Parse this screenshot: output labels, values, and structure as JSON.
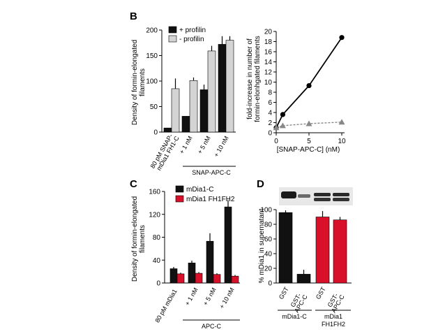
{
  "chart_data": [
    {
      "panel": "B",
      "type": "bar",
      "ylabel": "Density of formin-elongated filaments",
      "ylim": [
        0,
        200
      ],
      "yticks": [
        0,
        50,
        100,
        150,
        200
      ],
      "categories": [
        "80 pM SNAP-mDia1 FH1-C",
        "+ 1 nM",
        "+ 5 nM",
        "+ 10 nM"
      ],
      "group_label": "SNAP-APC-C",
      "series": [
        {
          "name": "+ profilin",
          "color": "#111111",
          "values": [
            8,
            31,
            83,
            172
          ],
          "errors": [
            0,
            0,
            10,
            16
          ]
        },
        {
          "name": "- profilin",
          "color": "#d4d4d4",
          "values": [
            85,
            101,
            159,
            180
          ],
          "errors": [
            20,
            6,
            10,
            8
          ]
        }
      ],
      "legend": "top-left"
    },
    {
      "panel": "B-right",
      "type": "line",
      "ylabel": "fold-increase in number of formin-elongated filaments",
      "xlabel": "[SNAP-APC-C] (nM)",
      "xlim": [
        0,
        10
      ],
      "ylim": [
        0,
        20
      ],
      "xticks": [
        0,
        5,
        10
      ],
      "yticks": [
        0,
        2,
        4,
        6,
        8,
        10,
        12,
        14,
        16,
        18,
        20
      ],
      "series": [
        {
          "marker": "circle",
          "color": "#000000",
          "style": "solid",
          "x": [
            0,
            1,
            5,
            10
          ],
          "y": [
            1,
            3.6,
            9.3,
            18.8
          ]
        },
        {
          "marker": "triangle",
          "color": "#888888",
          "style": "dashed",
          "x": [
            0,
            1,
            5,
            10
          ],
          "y": [
            1,
            1.4,
            1.8,
            2.1
          ]
        }
      ]
    },
    {
      "panel": "C",
      "type": "bar",
      "ylabel": "Density of formin-elongated filaments",
      "ylim": [
        0,
        160
      ],
      "yticks": [
        0,
        40,
        80,
        120,
        160
      ],
      "categories": [
        "80 pM mDia1",
        "+ 1 nM",
        "+ 5 nM",
        "+ 10 nM"
      ],
      "group_label": "APC-C",
      "series": [
        {
          "name": "mDia1-C",
          "color": "#111111",
          "values": [
            25,
            35,
            73,
            133
          ],
          "errors": [
            3,
            4,
            14,
            12
          ]
        },
        {
          "name": "mDia1 FH1FH2",
          "color": "#d8102a",
          "values": [
            16,
            17,
            15,
            12
          ],
          "errors": [
            2,
            2,
            2,
            2
          ]
        }
      ],
      "legend": "top-left"
    },
    {
      "panel": "D",
      "type": "bar",
      "ylabel": "% mDia1 in supernatant",
      "ylim": [
        0,
        100
      ],
      "yticks": [
        0,
        20,
        40,
        60,
        80,
        100
      ],
      "categories": [
        "GST",
        "GST-APC-C",
        "GST",
        "GST-APC-C"
      ],
      "groups": [
        "mDia1-C",
        "mDia1 FH1FH2"
      ],
      "series": [
        {
          "values": [
            96,
            12,
            90,
            86
          ],
          "errors": [
            3,
            6,
            8,
            4
          ],
          "colors": [
            "#111111",
            "#111111",
            "#d8102a",
            "#d8102a"
          ]
        }
      ]
    }
  ],
  "panels": {
    "b_label": "B",
    "c_label": "C",
    "d_label": "D"
  },
  "labels": {
    "b_group": "SNAP-APC-C",
    "c_group": "APC-C",
    "d_group1": "mDia1-C",
    "d_group2_line1": "mDia1",
    "d_group2_line2": "FH1FH2",
    "b_cat0_line1": "80 pM SNAP-",
    "b_cat0_line2": "mDia1 FH1-C",
    "c_cat0": "80 pM mDia1",
    "d_cat1_line1": "GST-",
    "d_cat1_line2": "APC-C",
    "b_ylabel_line1": "Density of formin-elongated",
    "b_ylabel_line2": "filaments",
    "br_ylabel_line1": "fold-increase in number of",
    "br_ylabel_line2": "formin-elonhgated filaments",
    "c_ylabel_line1": "Density of formin-elongated",
    "c_ylabel_line2": "filaments"
  }
}
